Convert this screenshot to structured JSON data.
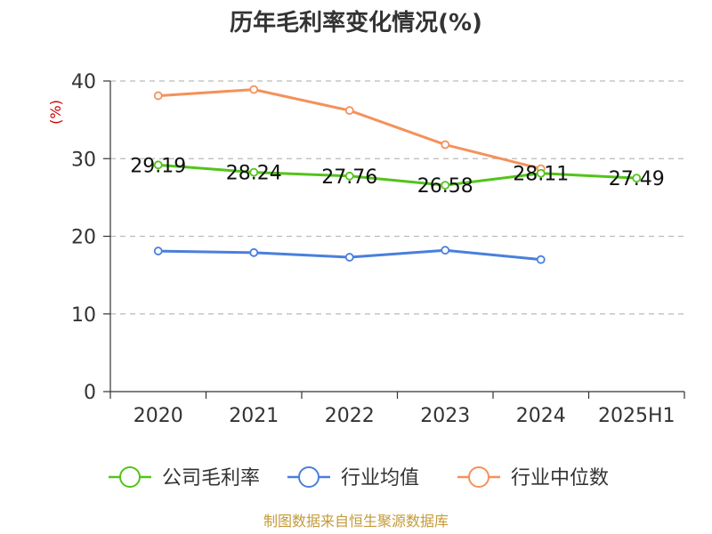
{
  "chart_data": {
    "type": "line",
    "title": "历年毛利率变化情况(%)",
    "unit_label": "(%)",
    "categories": [
      "2020",
      "2021",
      "2022",
      "2023",
      "2024",
      "2025H1"
    ],
    "ylim": [
      0,
      40
    ],
    "yticks": [
      "0",
      "10",
      "20",
      "30",
      "40"
    ],
    "grid": true,
    "legend_position": "bottom",
    "series": [
      {
        "name": "公司毛利率",
        "color": "#52c41a",
        "values": [
          29.19,
          28.24,
          27.76,
          26.58,
          28.11,
          27.49
        ],
        "labels": [
          "29.19",
          "28.24",
          "27.76",
          "26.58",
          "28.11",
          "27.49"
        ]
      },
      {
        "name": "行业均值",
        "color": "#4a7fdc",
        "values": [
          18.1,
          17.9,
          17.3,
          18.2,
          17.0,
          null
        ]
      },
      {
        "name": "行业中位数",
        "color": "#f5915a",
        "values": [
          38.1,
          38.9,
          36.2,
          31.8,
          28.7,
          null
        ]
      }
    ],
    "source": "制图数据来自恒生聚源数据库"
  }
}
